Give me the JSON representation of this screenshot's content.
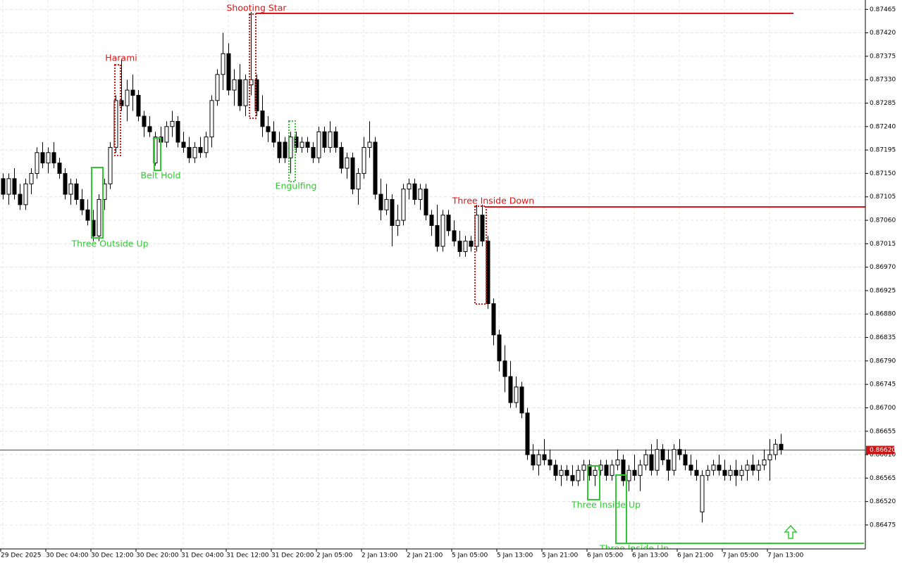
{
  "chart_data": {
    "type": "candlestick",
    "ylim": [
      0.86429,
      0.87483
    ],
    "yticks": [
      0.87465,
      {
        "value": 0.8742,
        "label": "0.87420"
      },
      0.87375,
      {
        "value": 0.8733,
        "label": "0.87330"
      },
      0.87285,
      {
        "value": 0.8724,
        "label": "0.87240"
      },
      0.87195,
      {
        "value": 0.8715,
        "label": "0.87150"
      },
      0.87105,
      {
        "value": 0.8706,
        "label": "0.87060"
      },
      0.87015,
      {
        "value": 0.8697,
        "label": "0.86970"
      },
      0.86925,
      {
        "value": 0.8688,
        "label": "0.86880"
      },
      0.86835,
      {
        "value": 0.8679,
        "label": "0.86790"
      },
      0.86745,
      {
        "value": 0.867,
        "label": "0.86700"
      },
      0.86655,
      {
        "value": 0.8661,
        "label": "0.86610"
      },
      0.86565,
      {
        "value": 0.8652,
        "label": "0.86520"
      },
      0.86475
    ],
    "grid": true,
    "up_color": "#ffffff",
    "down_color": "#000000",
    "current_price": {
      "value": 0.8662,
      "label": "0.86620",
      "color": "#c81414"
    },
    "categories": [
      "29 Dec 2025",
      null,
      null,
      null,
      null,
      null,
      null,
      null,
      "30 Dec 04:00",
      null,
      null,
      null,
      null,
      null,
      null,
      null,
      "30 Dec 12:00",
      null,
      null,
      null,
      null,
      null,
      null,
      null,
      "30 Dec 20:00",
      null,
      null,
      null,
      null,
      null,
      null,
      null,
      "31 Dec 04:00",
      null,
      null,
      null,
      null,
      null,
      null,
      null,
      "31 Dec 12:00",
      null,
      null,
      null,
      null,
      null,
      null,
      null,
      "31 Dec 20:00",
      null,
      null,
      null,
      null,
      null,
      null,
      null,
      "2 Jan 05:00",
      null,
      null,
      null,
      null,
      null,
      null,
      null,
      "2 Jan 13:00",
      null,
      null,
      null,
      null,
      null,
      null,
      null,
      "2 Jan 21:00",
      null,
      null,
      null,
      null,
      null,
      null,
      null,
      "5 Jan 05:00",
      null,
      null,
      null,
      null,
      null,
      null,
      null,
      "5 Jan 13:00",
      null,
      null,
      null,
      null,
      null,
      null,
      null,
      "5 Jan 21:00",
      null,
      null,
      null,
      null,
      null,
      null,
      null,
      "6 Jan 05:00",
      null,
      null,
      null,
      null,
      null,
      null,
      null,
      "6 Jan 13:00",
      null,
      null,
      null,
      null,
      null,
      null,
      null,
      "6 Jan 21:00",
      null,
      null,
      null,
      null,
      null,
      null,
      null,
      "7 Jan 05:00",
      null,
      null,
      null,
      null,
      null,
      null,
      null,
      "7 Jan 13:00",
      null,
      null
    ],
    "open": [
      0.8714,
      0.8711,
      0.8714,
      0.8711,
      0.8709,
      0.8713,
      0.8715,
      0.8719,
      0.8717,
      0.8719,
      0.8717,
      0.8715,
      0.8711,
      0.8713,
      0.871,
      0.8708,
      0.8706,
      0.8703,
      0.871,
      0.8713,
      0.872,
      0.8729,
      0.8728,
      0.8731,
      0.873,
      0.8726,
      0.8724,
      0.8717,
      0.8722,
      0.8721,
      0.8724,
      0.8725,
      0.8721,
      0.872,
      0.8718,
      0.872,
      0.8719,
      0.8722,
      0.8729,
      0.8734,
      0.8738,
      0.8731,
      0.8733,
      0.8728,
      0.8732,
      0.8733,
      0.8727,
      0.8724,
      0.8723,
      0.8721,
      0.8721,
      0.8718,
      0.8722,
      0.872,
      0.8721,
      0.872,
      0.8718,
      0.8723,
      0.872,
      0.8723,
      0.872,
      0.8716,
      0.8718,
      0.8712,
      0.8715,
      0.872,
      0.8721,
      0.8711,
      0.8708,
      0.871,
      0.8705,
      0.8706,
      0.8712,
      0.8713,
      0.871,
      0.8712,
      0.8707,
      0.8705,
      0.8701,
      0.8707,
      0.8704,
      0.8702,
      0.87,
      0.8702,
      0.8701,
      0.8707,
      0.8702,
      0.869,
      0.8684,
      0.8679,
      0.8676,
      0.8671,
      0.8674,
      0.8669,
      0.8661,
      0.8659,
      0.8661,
      0.866,
      0.8659,
      0.8657,
      0.8658,
      0.8657,
      0.8656,
      0.8658,
      0.8659,
      0.8657,
      0.8658,
      0.8659,
      0.8657,
      0.8659,
      0.866,
      0.8656,
      0.8658,
      0.8657,
      0.8659,
      0.8661,
      0.8658,
      0.8662,
      0.866,
      0.8658,
      0.8662,
      0.8661,
      0.8659,
      0.8658,
      0.865,
      0.8657,
      0.8658,
      0.8659,
      0.8658,
      0.8657,
      0.8658,
      0.8657,
      0.8658,
      0.8659,
      0.8658,
      0.8659,
      0.866,
      0.8661,
      0.8663
    ],
    "high": [
      0.8715,
      0.8715,
      0.8716,
      0.8713,
      0.8714,
      0.8716,
      0.872,
      0.8721,
      0.872,
      0.8721,
      0.8718,
      0.8716,
      0.8714,
      0.8714,
      0.8712,
      0.871,
      0.8708,
      0.8711,
      0.8714,
      0.8721,
      0.873,
      0.8737,
      0.8733,
      0.8734,
      0.8731,
      0.8727,
      0.8726,
      0.8723,
      0.8724,
      0.8725,
      0.8727,
      0.8726,
      0.8723,
      0.8722,
      0.8721,
      0.8722,
      0.8723,
      0.873,
      0.8735,
      0.8742,
      0.874,
      0.8735,
      0.8736,
      0.8734,
      0.8746,
      0.8734,
      0.873,
      0.8726,
      0.8725,
      0.8723,
      0.8722,
      0.8723,
      0.8723,
      0.8722,
      0.8722,
      0.8721,
      0.8724,
      0.8724,
      0.8725,
      0.8724,
      0.8721,
      0.8719,
      0.8719,
      0.8716,
      0.8722,
      0.8725,
      0.8722,
      0.8714,
      0.8713,
      0.8711,
      0.8709,
      0.8713,
      0.8714,
      0.8714,
      0.8713,
      0.8713,
      0.8708,
      0.8709,
      0.8708,
      0.8708,
      0.8706,
      0.8704,
      0.8703,
      0.8703,
      0.8709,
      0.8709,
      0.8703,
      0.8691,
      0.8685,
      0.8682,
      0.8679,
      0.8676,
      0.8675,
      0.867,
      0.8663,
      0.8662,
      0.8664,
      0.8662,
      0.866,
      0.8659,
      0.8659,
      0.8659,
      0.8659,
      0.866,
      0.866,
      0.8659,
      0.866,
      0.866,
      0.866,
      0.8662,
      0.8661,
      0.8659,
      0.8661,
      0.866,
      0.8662,
      0.8663,
      0.8664,
      0.8663,
      0.8662,
      0.8663,
      0.8664,
      0.8662,
      0.8661,
      0.866,
      0.8658,
      0.8659,
      0.866,
      0.8661,
      0.866,
      0.8659,
      0.866,
      0.8659,
      0.866,
      0.8661,
      0.866,
      0.8662,
      0.8664,
      0.8664,
      0.8665
    ],
    "low": [
      0.871,
      0.8709,
      0.871,
      0.8708,
      0.8708,
      0.8711,
      0.8714,
      0.8716,
      0.8715,
      0.8716,
      0.8714,
      0.871,
      0.8709,
      0.8709,
      0.8707,
      0.8705,
      0.8702,
      0.8702,
      0.8708,
      0.8712,
      0.8719,
      0.8727,
      0.8725,
      0.8727,
      0.8725,
      0.8722,
      0.8722,
      0.87165,
      0.872,
      0.872,
      0.8722,
      0.872,
      0.8719,
      0.8717,
      0.8717,
      0.8718,
      0.8718,
      0.872,
      0.8728,
      0.8731,
      0.873,
      0.8728,
      0.8727,
      0.8726,
      0.873,
      0.8726,
      0.8722,
      0.8721,
      0.872,
      0.8717,
      0.8717,
      0.8715,
      0.8719,
      0.8719,
      0.8719,
      0.8717,
      0.8717,
      0.8719,
      0.8719,
      0.8719,
      0.8715,
      0.8714,
      0.8711,
      0.8709,
      0.8714,
      0.8718,
      0.871,
      0.8706,
      0.8707,
      0.8701,
      0.8703,
      0.8705,
      0.871,
      0.8709,
      0.8708,
      0.8706,
      0.8703,
      0.87,
      0.87,
      0.8703,
      0.8701,
      0.8699,
      0.8699,
      0.87,
      0.87,
      0.8701,
      0.8689,
      0.8682,
      0.8677,
      0.8673,
      0.867,
      0.867,
      0.8668,
      0.866,
      0.8658,
      0.8657,
      0.8659,
      0.8658,
      0.8656,
      0.8655,
      0.8656,
      0.8655,
      0.8655,
      0.8656,
      0.8656,
      0.8655,
      0.8657,
      0.8656,
      0.8656,
      0.8658,
      0.8655,
      0.8654,
      0.8656,
      0.8654,
      0.8658,
      0.8657,
      0.8657,
      0.8659,
      0.8656,
      0.8657,
      0.866,
      0.8658,
      0.8657,
      0.8656,
      0.8648,
      0.8656,
      0.8657,
      0.8657,
      0.8656,
      0.8656,
      0.8655,
      0.8656,
      0.8656,
      0.8657,
      0.8656,
      0.8658,
      0.8656,
      0.866,
      0.8661
    ],
    "close": [
      0.8711,
      0.8714,
      0.8711,
      0.8709,
      0.8713,
      0.8715,
      0.8719,
      0.8717,
      0.8719,
      0.8717,
      0.8715,
      0.8711,
      0.8713,
      0.871,
      0.8708,
      0.8706,
      0.8703,
      0.871,
      0.8713,
      0.872,
      0.8729,
      0.8728,
      0.8731,
      0.873,
      0.8726,
      0.8724,
      0.8723,
      0.8722,
      0.8721,
      0.8724,
      0.8725,
      0.8721,
      0.872,
      0.8718,
      0.872,
      0.8719,
      0.8722,
      0.8729,
      0.8734,
      0.8738,
      0.8731,
      0.8733,
      0.8728,
      0.8733,
      0.8733,
      0.8727,
      0.8724,
      0.8723,
      0.8721,
      0.8718,
      0.8718,
      0.8722,
      0.872,
      0.8721,
      0.872,
      0.8718,
      0.8723,
      0.872,
      0.8723,
      0.872,
      0.8716,
      0.8718,
      0.8712,
      0.8715,
      0.872,
      0.8721,
      0.8711,
      0.8708,
      0.871,
      0.8705,
      0.8706,
      0.8712,
      0.8713,
      0.871,
      0.8712,
      0.8707,
      0.8705,
      0.8701,
      0.8707,
      0.8704,
      0.8702,
      0.87,
      0.8702,
      0.8701,
      0.8707,
      0.8702,
      0.869,
      0.8684,
      0.8679,
      0.8676,
      0.8671,
      0.8674,
      0.8669,
      0.8661,
      0.8659,
      0.8661,
      0.866,
      0.8659,
      0.8657,
      0.8658,
      0.8657,
      0.8656,
      0.8658,
      0.8659,
      0.8657,
      0.8658,
      0.8659,
      0.8657,
      0.8659,
      0.866,
      0.8656,
      0.8658,
      0.8657,
      0.8659,
      0.8661,
      0.8658,
      0.8662,
      0.866,
      0.8658,
      0.8662,
      0.8661,
      0.8659,
      0.8658,
      0.8657,
      0.8657,
      0.8658,
      0.8659,
      0.8658,
      0.8657,
      0.8658,
      0.8657,
      0.8658,
      0.8659,
      0.8658,
      0.8659,
      0.866,
      0.8661,
      0.8663,
      0.8662
    ],
    "patterns": [
      {
        "label": "Three Outside Up",
        "color": "#32c832"
      },
      {
        "label": "Harami",
        "color": "#e01414"
      },
      {
        "label": "Belt Hold",
        "color": "#32c832"
      },
      {
        "label": "Shooting Star",
        "color": "#e01414"
      },
      {
        "label": "Engulfing",
        "color": "#32c832"
      },
      {
        "label": "Three Inside Down",
        "color": "#e01414"
      },
      {
        "label": "Three Inside Up",
        "color": "#32c832"
      },
      {
        "label": "Three Inside Up",
        "color": "#32c832"
      }
    ]
  }
}
